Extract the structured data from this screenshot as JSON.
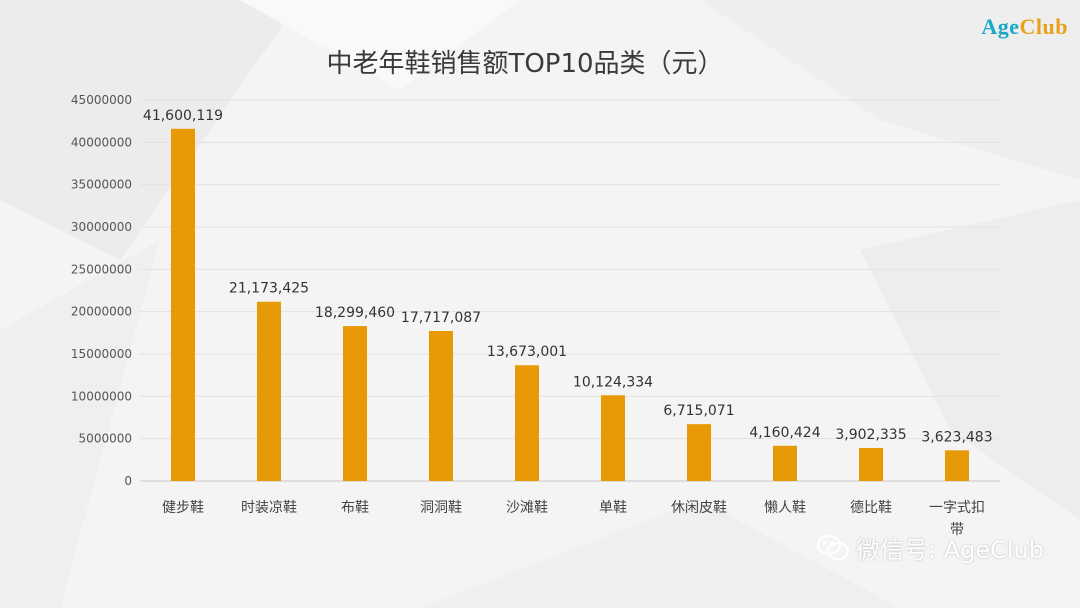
{
  "logo": {
    "part1": "Age",
    "part2": "Club"
  },
  "watermark": {
    "text": "微信号: AgeClub",
    "icon": "wechat-icon"
  },
  "colors": {
    "bar": "#E89A06",
    "grid": "#e2e2e2",
    "axis": "#c8c8c8"
  },
  "chart_data": {
    "type": "bar",
    "title": "中老年鞋销售额TOP10品类（元）",
    "categories": [
      "健步鞋",
      "时装凉鞋",
      "布鞋",
      "洞洞鞋",
      "沙滩鞋",
      "单鞋",
      "休闲皮鞋",
      "懒人鞋",
      "德比鞋",
      "一字式扣带"
    ],
    "category_lines": [
      [
        "健步鞋"
      ],
      [
        "时装凉鞋"
      ],
      [
        "布鞋"
      ],
      [
        "洞洞鞋"
      ],
      [
        "沙滩鞋"
      ],
      [
        "单鞋"
      ],
      [
        "休闲皮鞋"
      ],
      [
        "懒人鞋"
      ],
      [
        "德比鞋"
      ],
      [
        "一字式扣",
        "带"
      ]
    ],
    "values": [
      41600119,
      21173425,
      18299460,
      17717087,
      13673001,
      10124334,
      6715071,
      4160424,
      3902335,
      3623483
    ],
    "data_labels": [
      "41,600,119",
      "21,173,425",
      "18,299,460",
      "17,717,087",
      "13,673,001",
      "10,124,334",
      "6,715,071",
      "4,160,424",
      "3,902,335",
      "3,623,483"
    ],
    "yticks": [
      0,
      5000000,
      10000000,
      15000000,
      20000000,
      25000000,
      30000000,
      35000000,
      40000000,
      45000000
    ],
    "ylim": [
      0,
      45000000
    ],
    "xlabel": "",
    "ylabel": "",
    "grid": true,
    "legend": "none"
  }
}
